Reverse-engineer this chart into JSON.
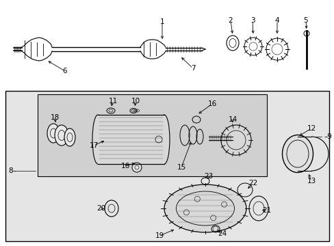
{
  "bg_color": "#ffffff",
  "outer_box_color": "#c8c8c8",
  "inner_box_color": "#d0d0d0",
  "line_color": "#000000",
  "text_color": "#000000",
  "fig_width": 4.89,
  "fig_height": 3.6,
  "dpi": 100
}
